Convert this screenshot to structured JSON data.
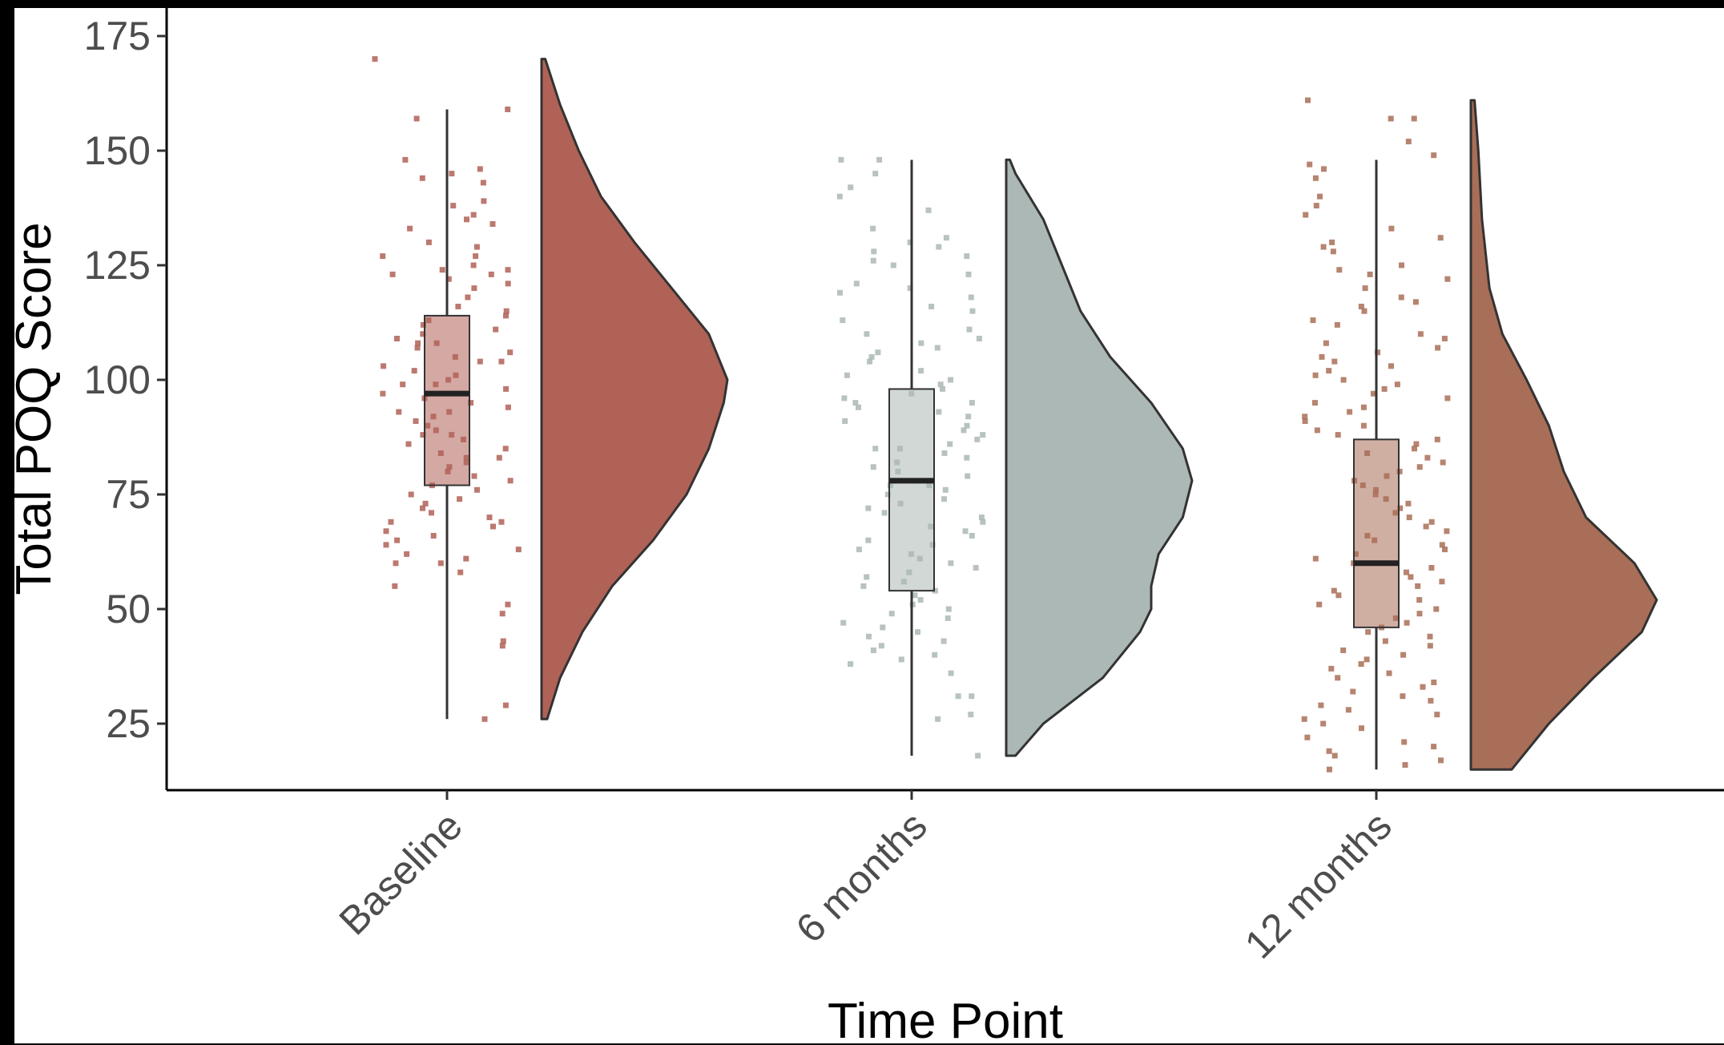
{
  "chart_data": {
    "type": "raincloud",
    "title": "",
    "xlabel": "Time Point",
    "ylabel": "Total POQ Score",
    "ylim": [
      13,
      177
    ],
    "yticks": [
      25,
      50,
      75,
      100,
      125,
      150,
      175
    ],
    "categories": [
      "Baseline",
      "6 months",
      "12 months"
    ],
    "colors": {
      "Baseline": "#b06257",
      "6 months": "#abb8b5",
      "12 months": "#a96e57"
    },
    "boxplots": [
      {
        "category": "Baseline",
        "min": 26,
        "q1": 77,
        "median": 97,
        "q3": 114,
        "max": 159
      },
      {
        "category": "6 months",
        "min": 18,
        "q1": 54,
        "median": 78,
        "q3": 98,
        "max": 148
      },
      {
        "category": "12 months",
        "min": 15,
        "q1": 46,
        "median": 60,
        "q3": 87,
        "max": 148
      }
    ],
    "densities": [
      {
        "category": "Baseline",
        "min": 26,
        "max": 170,
        "profile": [
          [
            26,
            0.03
          ],
          [
            35,
            0.1
          ],
          [
            45,
            0.22
          ],
          [
            55,
            0.38
          ],
          [
            65,
            0.6
          ],
          [
            75,
            0.78
          ],
          [
            85,
            0.9
          ],
          [
            95,
            0.98
          ],
          [
            100,
            1.0
          ],
          [
            110,
            0.9
          ],
          [
            120,
            0.7
          ],
          [
            130,
            0.5
          ],
          [
            140,
            0.32
          ],
          [
            150,
            0.2
          ],
          [
            160,
            0.1
          ],
          [
            170,
            0.02
          ]
        ]
      },
      {
        "category": "6 months",
        "min": 18,
        "max": 148,
        "profile": [
          [
            18,
            0.05
          ],
          [
            25,
            0.2
          ],
          [
            35,
            0.52
          ],
          [
            45,
            0.72
          ],
          [
            50,
            0.78
          ],
          [
            55,
            0.78
          ],
          [
            62,
            0.82
          ],
          [
            70,
            0.95
          ],
          [
            78,
            1.0
          ],
          [
            85,
            0.95
          ],
          [
            95,
            0.78
          ],
          [
            105,
            0.56
          ],
          [
            115,
            0.4
          ],
          [
            125,
            0.3
          ],
          [
            135,
            0.2
          ],
          [
            145,
            0.05
          ],
          [
            148,
            0.02
          ]
        ]
      },
      {
        "category": "12 months",
        "min": 15,
        "max": 161,
        "profile": [
          [
            15,
            0.22
          ],
          [
            25,
            0.42
          ],
          [
            35,
            0.66
          ],
          [
            45,
            0.92
          ],
          [
            52,
            1.0
          ],
          [
            60,
            0.88
          ],
          [
            70,
            0.62
          ],
          [
            80,
            0.5
          ],
          [
            90,
            0.42
          ],
          [
            100,
            0.3
          ],
          [
            110,
            0.17
          ],
          [
            120,
            0.1
          ],
          [
            135,
            0.06
          ],
          [
            150,
            0.04
          ],
          [
            161,
            0.02
          ]
        ]
      }
    ],
    "points": [
      {
        "category": "Baseline",
        "y": [
          170,
          159,
          157,
          148,
          146,
          145,
          144,
          143,
          139,
          138,
          136,
          135,
          134,
          133,
          130,
          129,
          127,
          127,
          125,
          124,
          124,
          123,
          123,
          122,
          121,
          120,
          118,
          116,
          115,
          114,
          113,
          112,
          111,
          110,
          109,
          108,
          108,
          107,
          106,
          105,
          104,
          104,
          103,
          102,
          101,
          100,
          99,
          99,
          98,
          97,
          97,
          96,
          95,
          94,
          93,
          93,
          92,
          91,
          90,
          89,
          88,
          88,
          87,
          86,
          85,
          84,
          83,
          83,
          82,
          81,
          80,
          79,
          78,
          77,
          76,
          75,
          74,
          73,
          72,
          71,
          70,
          69,
          69,
          68,
          67,
          66,
          65,
          64,
          63,
          62,
          61,
          60,
          60,
          58,
          55,
          51,
          49,
          43,
          42,
          29,
          26
        ]
      },
      {
        "category": "6 months",
        "y": [
          148,
          148,
          145,
          142,
          140,
          137,
          133,
          131,
          130,
          129,
          128,
          127,
          126,
          125,
          123,
          121,
          120,
          119,
          118,
          116,
          115,
          113,
          111,
          110,
          109,
          108,
          107,
          106,
          105,
          104,
          102,
          101,
          100,
          99,
          98,
          97,
          96,
          95,
          95,
          94,
          93,
          92,
          91,
          90,
          89,
          88,
          87,
          86,
          85,
          85,
          84,
          83,
          82,
          81,
          80,
          79,
          78,
          77,
          77,
          76,
          75,
          74,
          73,
          72,
          71,
          70,
          69,
          68,
          67,
          66,
          65,
          64,
          63,
          62,
          61,
          60,
          59,
          58,
          57,
          56,
          55,
          54,
          53,
          52,
          51,
          50,
          49,
          48,
          47,
          46,
          45,
          44,
          43,
          42,
          41,
          40,
          39,
          38,
          36,
          31,
          31,
          27,
          26,
          18
        ]
      },
      {
        "category": "12 months",
        "y": [
          161,
          157,
          157,
          152,
          149,
          147,
          146,
          144,
          140,
          138,
          136,
          133,
          131,
          130,
          129,
          128,
          125,
          124,
          123,
          122,
          120,
          118,
          117,
          116,
          115,
          113,
          112,
          110,
          109,
          108,
          107,
          106,
          105,
          104,
          103,
          102,
          101,
          100,
          99,
          98,
          97,
          96,
          95,
          94,
          93,
          92,
          91,
          90,
          89,
          88,
          87,
          86,
          85,
          84,
          83,
          82,
          81,
          80,
          79,
          78,
          77,
          76,
          75,
          74,
          73,
          72,
          71,
          70,
          69,
          68,
          67,
          66,
          65,
          64,
          63,
          62,
          61,
          60,
          59,
          58,
          57,
          56,
          55,
          54,
          53,
          52,
          51,
          50,
          49,
          48,
          47,
          46,
          45,
          44,
          43,
          42,
          41,
          40,
          39,
          38,
          37,
          36,
          35,
          34,
          33,
          32,
          31,
          30,
          29,
          28,
          27,
          26,
          25,
          24,
          22,
          21,
          20,
          19,
          18,
          17,
          16,
          15
        ]
      }
    ],
    "grid": false,
    "legend": "none"
  }
}
